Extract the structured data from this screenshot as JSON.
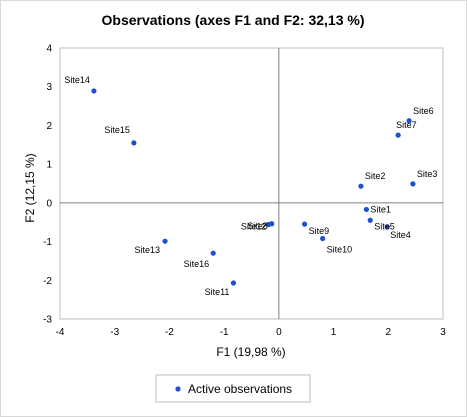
{
  "chart_data": {
    "type": "scatter",
    "title": "Observations (axes F1 and F2: 32,13 %)",
    "xlabel": "F1 (19,98 %)",
    "ylabel": "F2 (12,15 %)",
    "xlim": [
      -4,
      3
    ],
    "ylim": [
      -3,
      4
    ],
    "x_ticks": [
      -4,
      -3,
      -2,
      -1,
      0,
      1,
      2,
      3
    ],
    "y_ticks": [
      -3,
      -2,
      -1,
      0,
      1,
      2,
      3,
      4
    ],
    "grid": false,
    "legend_position": "bottom",
    "marker_color": "#1f4fd1",
    "series": [
      {
        "name": "Active observations",
        "points": [
          {
            "label": "Site14",
            "x": -3.38,
            "y": 2.89
          },
          {
            "label": "Site15",
            "x": -2.65,
            "y": 1.55
          },
          {
            "label": "Site13",
            "x": -2.08,
            "y": -0.99
          },
          {
            "label": "Site16",
            "x": -1.2,
            "y": -1.3
          },
          {
            "label": "Site11",
            "x": -0.83,
            "y": -2.07
          },
          {
            "label": "Site12",
            "x": -0.19,
            "y": -0.56
          },
          {
            "label": "Site8",
            "x": -0.13,
            "y": -0.54
          },
          {
            "label": "Site9",
            "x": 0.47,
            "y": -0.55
          },
          {
            "label": "Site10",
            "x": 0.8,
            "y": -0.92
          },
          {
            "label": "Site2",
            "x": 1.5,
            "y": 0.43
          },
          {
            "label": "Site1",
            "x": 1.6,
            "y": -0.17
          },
          {
            "label": "Site5",
            "x": 1.67,
            "y": -0.45
          },
          {
            "label": "Site4",
            "x": 1.98,
            "y": -0.62
          },
          {
            "label": "Site6",
            "x": 2.38,
            "y": 2.12
          },
          {
            "label": "Site7",
            "x": 2.18,
            "y": 1.75
          },
          {
            "label": "Site3",
            "x": 2.45,
            "y": 0.49
          }
        ]
      }
    ]
  }
}
